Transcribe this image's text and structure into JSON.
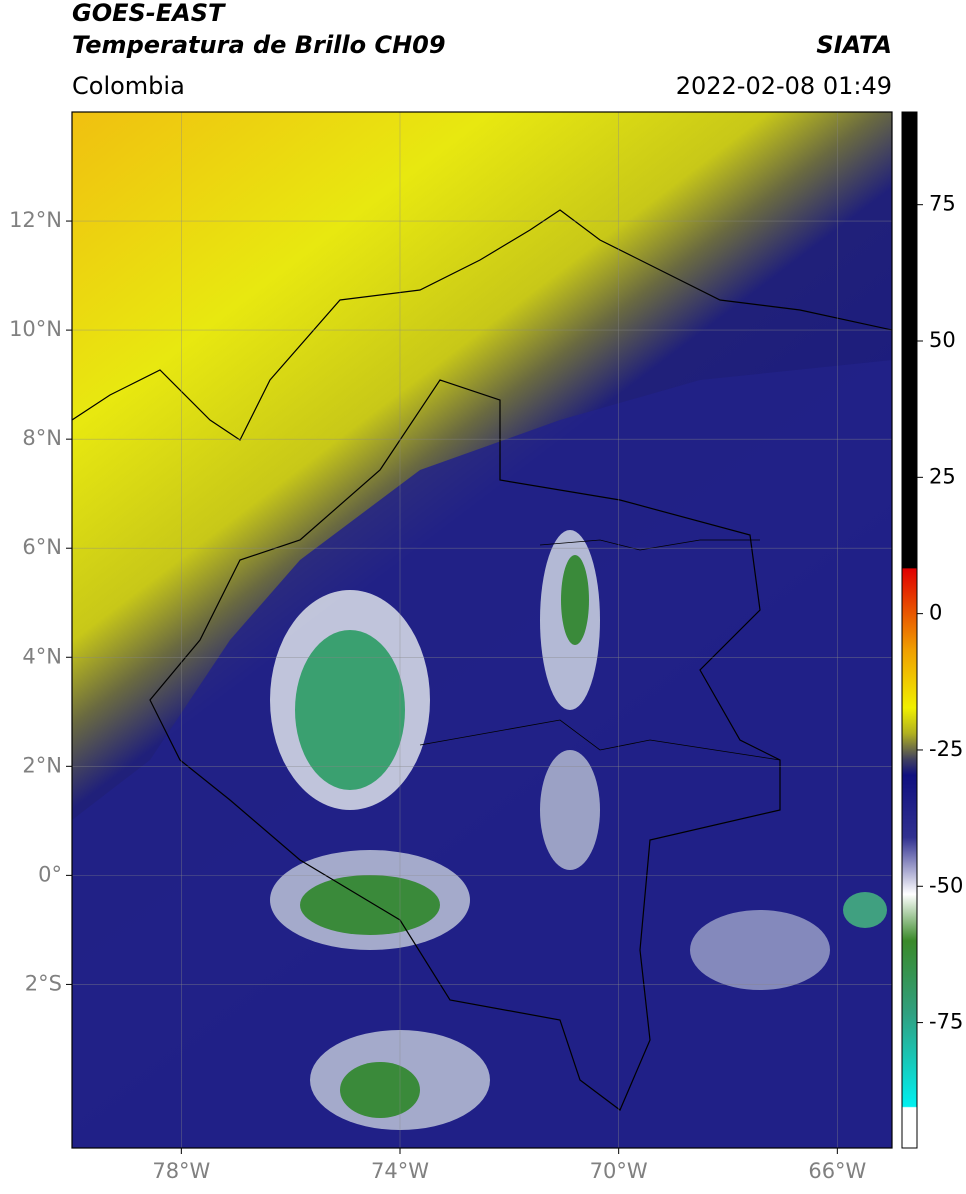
{
  "header": {
    "title": "GOES-EAST",
    "subtitle": "Temperatura de Brillo CH09",
    "source": "SIATA",
    "region": "Colombia",
    "datetime": "2022-02-08 01:49"
  },
  "map": {
    "lonlim": [
      -80,
      -65
    ],
    "latlim": [
      -5,
      14
    ],
    "lonticks": [
      {
        "value": -78,
        "label": "78°W"
      },
      {
        "value": -74,
        "label": "74°W"
      },
      {
        "value": -70,
        "label": "70°W"
      },
      {
        "value": -66,
        "label": "66°W"
      }
    ],
    "latticks": [
      {
        "value": 12,
        "label": "12°N"
      },
      {
        "value": 10,
        "label": "10°N"
      },
      {
        "value": 8,
        "label": "8°N"
      },
      {
        "value": 6,
        "label": "6°N"
      },
      {
        "value": 4,
        "label": "4°N"
      },
      {
        "value": 2,
        "label": "2°N"
      },
      {
        "value": 0,
        "label": "0°"
      },
      {
        "value": -2,
        "label": "2°S"
      }
    ],
    "grid": true
  },
  "colorbar": {
    "lim": [
      -98,
      92
    ],
    "ticks": [
      75,
      50,
      25,
      0,
      -25,
      -50,
      -75
    ]
  }
}
